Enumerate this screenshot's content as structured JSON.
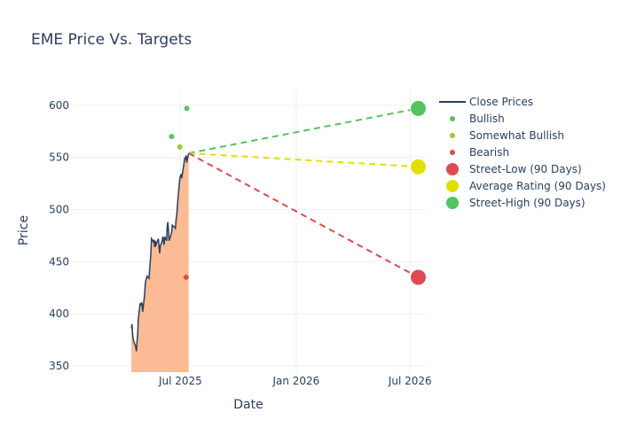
{
  "chart_data": {
    "type": "line",
    "title": "EME Price Vs. Targets",
    "xlabel": "Date",
    "ylabel": "Price",
    "xlim": [
      "2025-01-08",
      "2026-07-26"
    ],
    "ylim": [
      344,
      616
    ],
    "x_ticks": [
      {
        "date": "2025-07-01",
        "label": "Jul 2025"
      },
      {
        "date": "2026-01-01",
        "label": "Jan 2026"
      },
      {
        "date": "2026-07-01",
        "label": "Jul 2026"
      }
    ],
    "y_ticks": [
      350,
      400,
      450,
      500,
      550,
      600
    ],
    "grid": true,
    "legend_position": "top-right",
    "colors": {
      "close": "#2a3f5f",
      "fill": "#fbbb95",
      "bullish": "#54c45e",
      "somewhat_bullish": "#9acd32",
      "bearish": "#dd4b50",
      "street_low": "#dd4b50",
      "average": "#e0e000",
      "street_high": "#54c45e"
    },
    "close_prices": [
      [
        "2025-04-14",
        386
      ],
      [
        "2025-04-15",
        390
      ],
      [
        "2025-04-16",
        380
      ],
      [
        "2025-04-17",
        375
      ],
      [
        "2025-04-21",
        368
      ],
      [
        "2025-04-22",
        364
      ],
      [
        "2025-04-23",
        373
      ],
      [
        "2025-04-24",
        380
      ],
      [
        "2025-04-25",
        395
      ],
      [
        "2025-04-28",
        410
      ],
      [
        "2025-04-29",
        408
      ],
      [
        "2025-04-30",
        411
      ],
      [
        "2025-05-01",
        409
      ],
      [
        "2025-05-02",
        402
      ],
      [
        "2025-05-05",
        418
      ],
      [
        "2025-05-06",
        428
      ],
      [
        "2025-05-07",
        432
      ],
      [
        "2025-05-08",
        434
      ],
      [
        "2025-05-09",
        436
      ],
      [
        "2025-05-12",
        434
      ],
      [
        "2025-05-13",
        442
      ],
      [
        "2025-05-14",
        450
      ],
      [
        "2025-05-15",
        458
      ],
      [
        "2025-05-16",
        472
      ],
      [
        "2025-05-19",
        469
      ],
      [
        "2025-05-20",
        471
      ],
      [
        "2025-05-21",
        464
      ],
      [
        "2025-05-22",
        470
      ],
      [
        "2025-05-23",
        466
      ],
      [
        "2025-05-27",
        472
      ],
      [
        "2025-05-28",
        464
      ],
      [
        "2025-05-29",
        458
      ],
      [
        "2025-05-30",
        465
      ],
      [
        "2025-06-02",
        470
      ],
      [
        "2025-06-03",
        474
      ],
      [
        "2025-06-04",
        470
      ],
      [
        "2025-06-05",
        466
      ],
      [
        "2025-06-06",
        474
      ],
      [
        "2025-06-09",
        470
      ],
      [
        "2025-06-10",
        484
      ],
      [
        "2025-06-11",
        488
      ],
      [
        "2025-06-12",
        480
      ],
      [
        "2025-06-13",
        470
      ],
      [
        "2025-06-16",
        476
      ],
      [
        "2025-06-17",
        478
      ],
      [
        "2025-06-18",
        485
      ],
      [
        "2025-06-20",
        484
      ],
      [
        "2025-06-23",
        482
      ],
      [
        "2025-06-24",
        490
      ],
      [
        "2025-06-25",
        494
      ],
      [
        "2025-06-26",
        502
      ],
      [
        "2025-06-27",
        510
      ],
      [
        "2025-06-30",
        530
      ],
      [
        "2025-07-01",
        532
      ],
      [
        "2025-07-02",
        534
      ],
      [
        "2025-07-03",
        530
      ],
      [
        "2025-07-07",
        546
      ],
      [
        "2025-07-08",
        550
      ],
      [
        "2025-07-09",
        548
      ],
      [
        "2025-07-10",
        552
      ],
      [
        "2025-07-11",
        545
      ],
      [
        "2025-07-14",
        554
      ]
    ],
    "ratings": [
      {
        "type": "Bullish",
        "date": "2025-06-17",
        "price": 570
      },
      {
        "type": "Somewhat Bullish",
        "date": "2025-06-30",
        "price": 560
      },
      {
        "type": "Bullish",
        "date": "2025-07-11",
        "price": 597
      },
      {
        "type": "Bearish",
        "date": "2025-07-10",
        "price": 435
      }
    ],
    "targets_start": {
      "date": "2025-07-14",
      "price": 554
    },
    "targets_date": "2026-07-14",
    "targets": {
      "street_low": 435,
      "average": 541,
      "street_high": 597
    },
    "legend": [
      {
        "key": "close",
        "label": "Close Prices",
        "kind": "line"
      },
      {
        "key": "bullish",
        "label": "Bullish",
        "kind": "dot"
      },
      {
        "key": "somewhat_bullish",
        "label": "Somewhat Bullish",
        "kind": "dot"
      },
      {
        "key": "bearish",
        "label": "Bearish",
        "kind": "dot"
      },
      {
        "key": "street_low",
        "label": "Street-Low (90 Days)",
        "kind": "big"
      },
      {
        "key": "average",
        "label": "Average Rating (90 Days)",
        "kind": "big"
      },
      {
        "key": "street_high",
        "label": "Street-High (90 Days)",
        "kind": "big"
      }
    ]
  }
}
